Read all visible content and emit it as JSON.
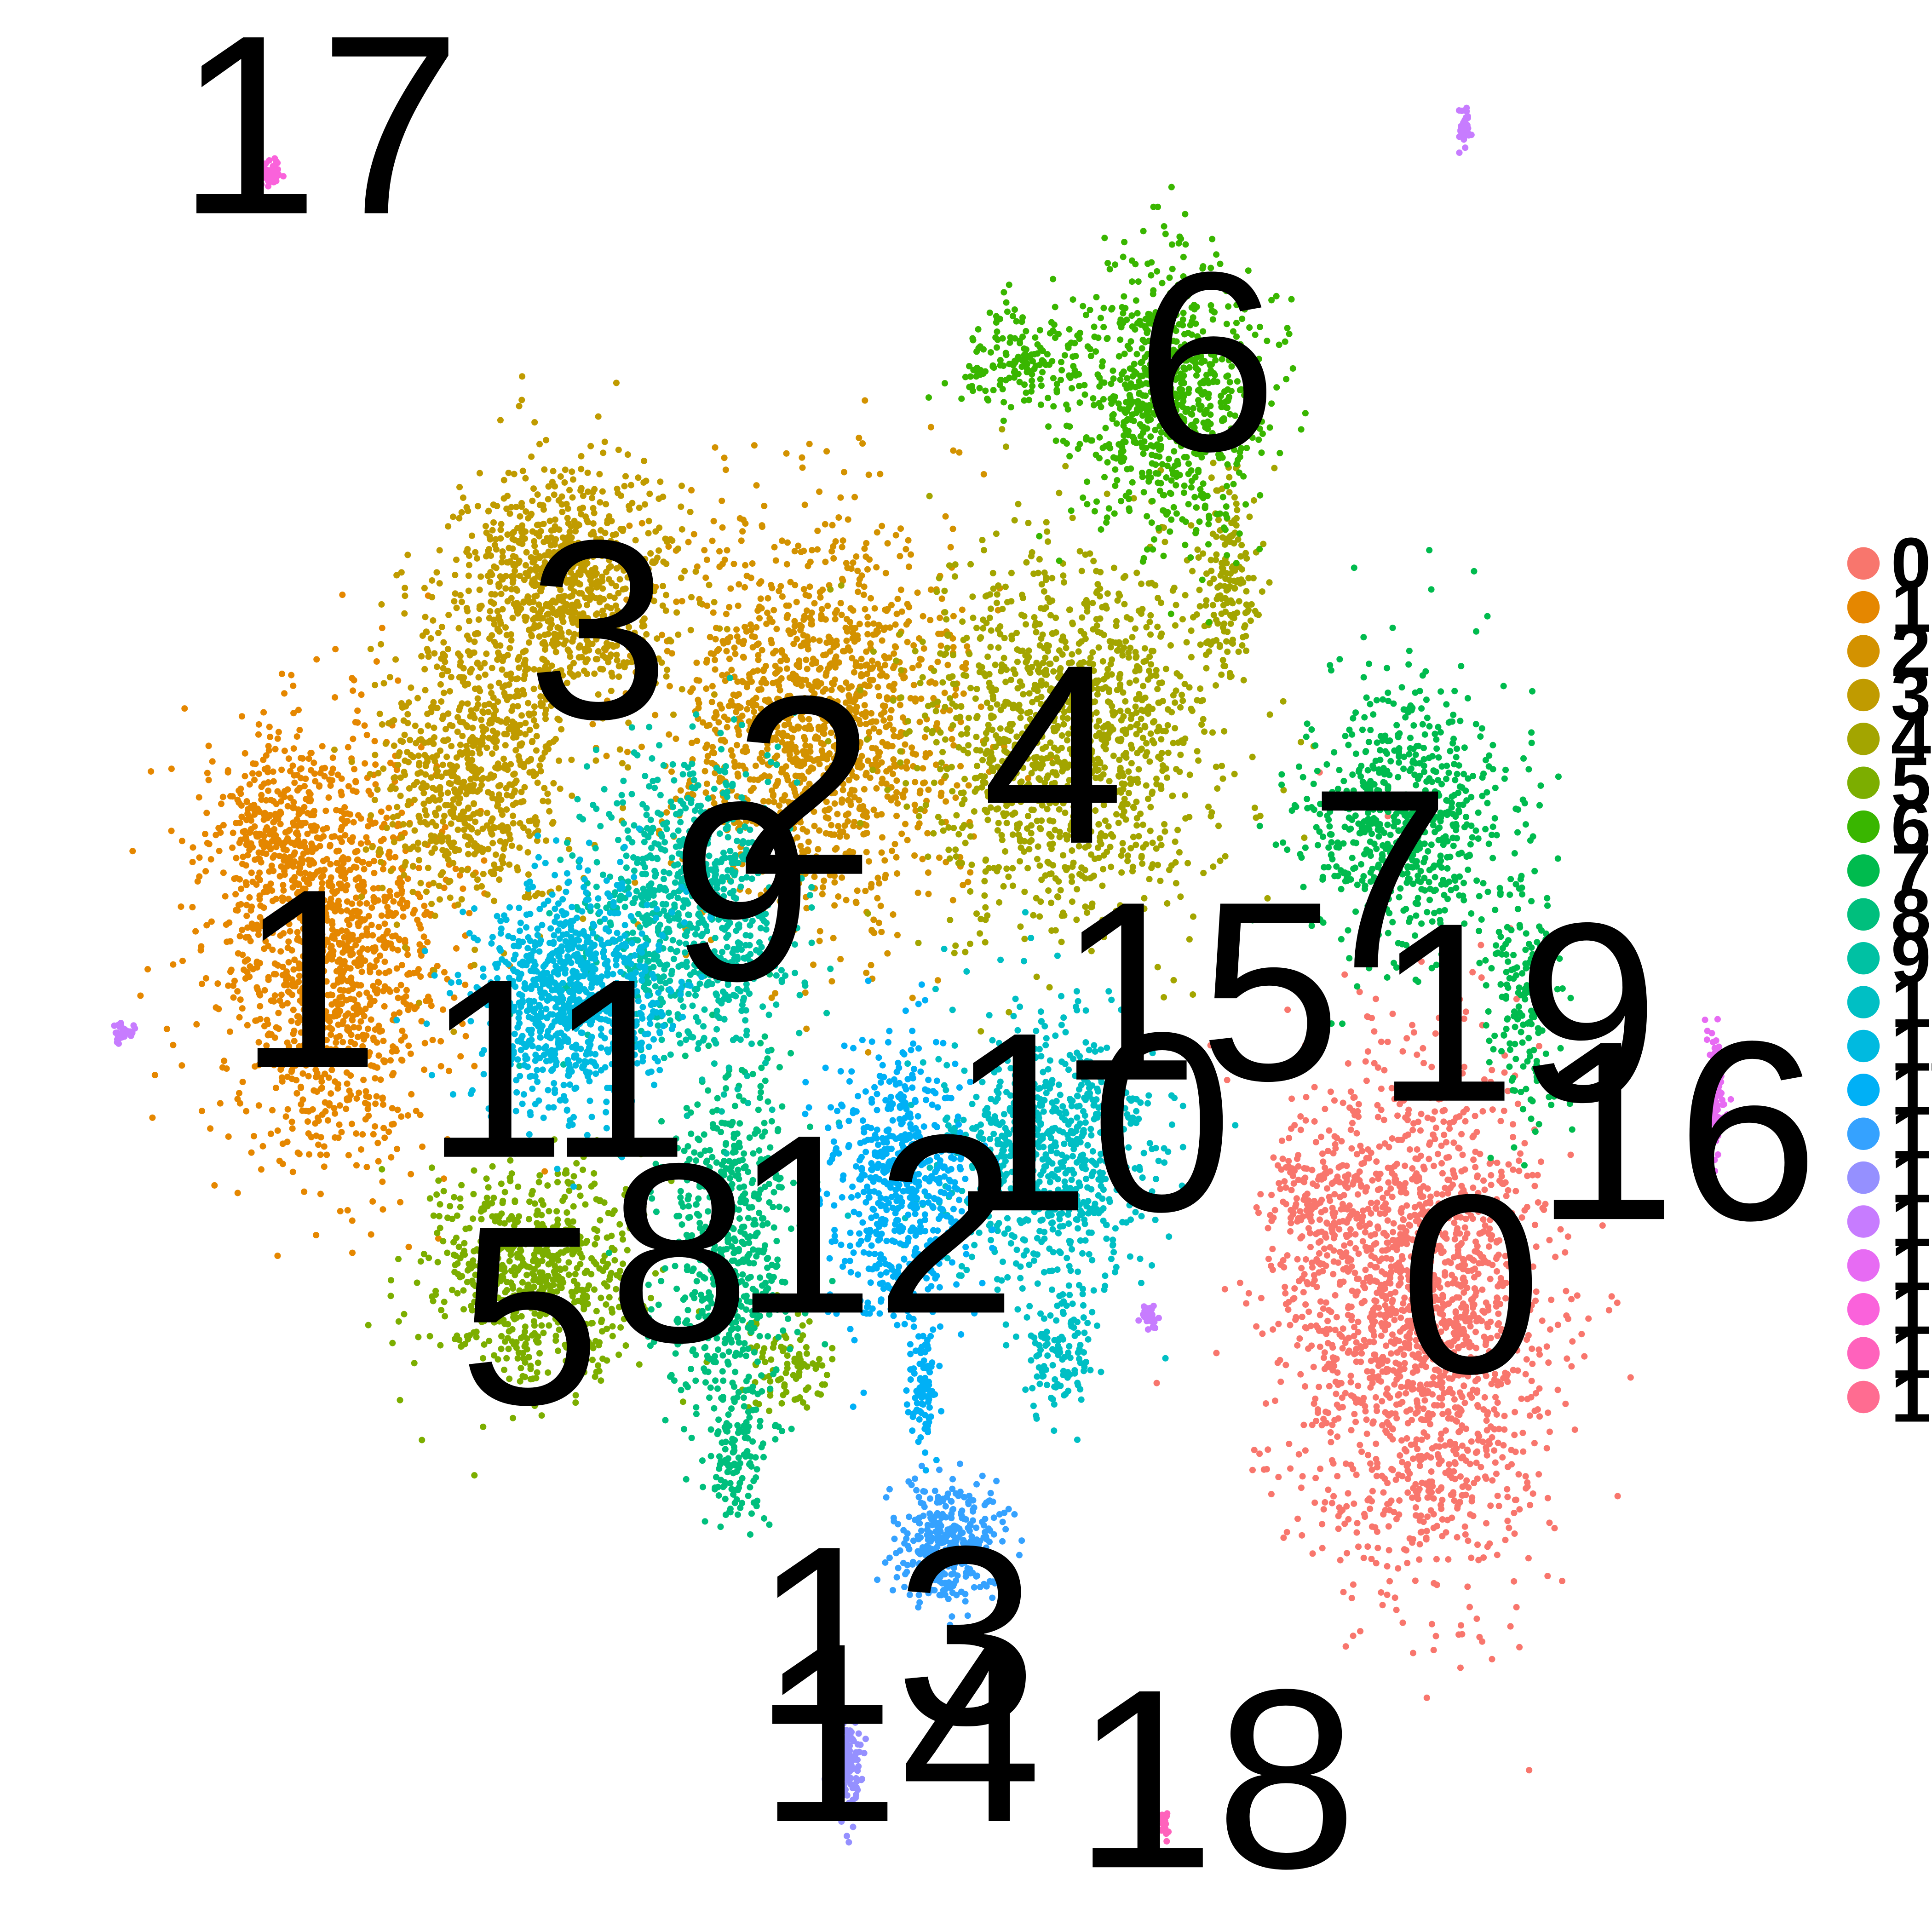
{
  "chart_data": {
    "type": "scatter",
    "title": "",
    "xlabel": "",
    "ylabel": "",
    "xlim": [
      0,
      1550
    ],
    "ylim": [
      0,
      1550
    ],
    "grid": false,
    "axes_visible": false,
    "legend_placement": "right",
    "clusters": [
      {
        "id": "0",
        "color": "#F8766D",
        "label": [
          1180,
          1030
        ],
        "blobs": [
          [
            1140,
            1060,
            105,
            210,
            1800
          ],
          [
            1060,
            960,
            40,
            60,
            160
          ]
        ]
      },
      {
        "id": "1",
        "color": "#E58700",
        "label": [
          248,
          785
        ],
        "blobs": [
          [
            265,
            760,
            95,
            165,
            1300
          ],
          [
            215,
            660,
            40,
            50,
            180
          ]
        ]
      },
      {
        "id": "2",
        "color": "#D39200",
        "label": [
          645,
          630
        ],
        "blobs": [
          [
            655,
            580,
            115,
            160,
            1400
          ]
        ]
      },
      {
        "id": "3",
        "color": "#C09B00",
        "label": [
          480,
          505
        ],
        "blobs": [
          [
            450,
            470,
            90,
            95,
            900
          ],
          [
            380,
            620,
            75,
            110,
            700
          ]
        ]
      },
      {
        "id": "4",
        "color": "#A3A500",
        "label": [
          845,
          605
        ],
        "blobs": [
          [
            860,
            590,
            120,
            150,
            1300
          ],
          [
            985,
            470,
            25,
            80,
            150
          ]
        ]
      },
      {
        "id": "5",
        "color": "#7CAE00",
        "label": [
          425,
          1055
        ],
        "blobs": [
          [
            430,
            1020,
            85,
            85,
            700
          ],
          [
            630,
            1100,
            40,
            40,
            90
          ]
        ]
      },
      {
        "id": "6",
        "color": "#39B600",
        "label": [
          968,
          290
        ],
        "blobs": [
          [
            940,
            320,
            75,
            110,
            800
          ],
          [
            820,
            290,
            50,
            40,
            160
          ]
        ]
      },
      {
        "id": "7",
        "color": "#00BB4E",
        "label": [
          1107,
          705
        ],
        "blobs": [
          [
            1130,
            660,
            80,
            110,
            700
          ],
          [
            1225,
            800,
            30,
            90,
            180
          ]
        ]
      },
      {
        "id": "8",
        "color": "#00BF7D",
        "label": [
          545,
          1005
        ],
        "blobs": [
          [
            585,
            1000,
            55,
            140,
            600
          ],
          [
            590,
            1170,
            25,
            60,
            120
          ]
        ]
      },
      {
        "id": "9",
        "color": "#00C1A3",
        "label": [
          595,
          715
        ],
        "blobs": [
          [
            555,
            730,
            80,
            120,
            900
          ]
        ]
      },
      {
        "id": "10",
        "color": "#00BFC4",
        "label": [
          875,
          900
        ],
        "blobs": [
          [
            840,
            920,
            90,
            110,
            800
          ],
          [
            850,
            1080,
            30,
            60,
            120
          ]
        ]
      },
      {
        "id": "11",
        "color": "#00BAE0",
        "label": [
          447,
          857
        ],
        "blobs": [
          [
            460,
            800,
            80,
            90,
            900
          ]
        ]
      },
      {
        "id": "12",
        "color": "#00B0F6",
        "label": [
          702,
          982
        ],
        "blobs": [
          [
            720,
            950,
            55,
            110,
            600
          ],
          [
            740,
            1110,
            12,
            50,
            90
          ]
        ]
      },
      {
        "id": "13",
        "color": "#35A2FF",
        "label": [
          718,
          1312
        ],
        "blobs": [
          [
            760,
            1240,
            45,
            50,
            350
          ]
        ]
      },
      {
        "id": "14",
        "color": "#9590FF",
        "label": [
          722,
          1390
        ],
        "blobs": [
          [
            677,
            1415,
            14,
            42,
            260
          ]
        ]
      },
      {
        "id": "15",
        "color": "#C77CFF",
        "label": [
          962,
          795
        ],
        "blobs": [
          [
            1175,
            103,
            5,
            14,
            40
          ],
          [
            100,
            828,
            8,
            8,
            40
          ],
          [
            922,
            1055,
            7,
            10,
            30
          ]
        ]
      },
      {
        "id": "16",
        "color": "#E76BF3",
        "label": [
          1345,
          907
        ],
        "blobs": [
          [
            1376,
            885,
            9,
            55,
            120
          ]
        ]
      },
      {
        "id": "17",
        "color": "#FA62DB",
        "label": [
          256,
          100
        ],
        "blobs": [
          [
            217,
            139,
            9,
            8,
            60
          ]
        ]
      },
      {
        "id": "18",
        "color": "#FF62BC",
        "label": [
          975,
          1427
        ],
        "blobs": [
          [
            934,
            1462,
            4,
            10,
            20
          ]
        ]
      },
      {
        "id": "19",
        "color": "#FF6C91",
        "label": [
          1217,
          812
        ],
        "blobs": []
      }
    ],
    "legend_entries": [
      "0",
      "1",
      "2",
      "3",
      "4",
      "5",
      "6",
      "7",
      "8",
      "9",
      "10",
      "11",
      "12",
      "13",
      "14",
      "15",
      "16",
      "17",
      "18",
      "19"
    ]
  }
}
